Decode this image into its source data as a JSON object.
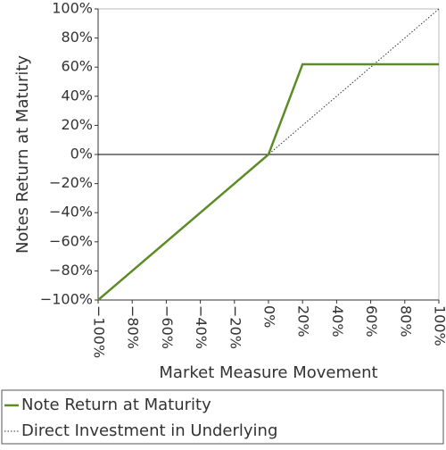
{
  "chart_data": {
    "type": "line",
    "x_label": "Market Measure Movement",
    "y_label": "Notes Return at Maturity",
    "x": [
      -100,
      0,
      20,
      100
    ],
    "series": [
      {
        "name": "Note Return at Maturity",
        "color": "#5b8c28",
        "style": "solid",
        "values": [
          -100,
          0,
          62,
          62
        ]
      },
      {
        "name": "Direct Investment in Underlying",
        "color": "#333333",
        "style": "dotted",
        "values": [
          -100,
          0,
          20,
          100
        ]
      }
    ],
    "xlim": [
      -100,
      100
    ],
    "ylim": [
      -100,
      100
    ],
    "xticks": [
      {
        "value": -100,
        "label": "−100%"
      },
      {
        "value": -80,
        "label": "−80%"
      },
      {
        "value": -60,
        "label": "−60%"
      },
      {
        "value": -40,
        "label": "−40%"
      },
      {
        "value": -20,
        "label": "−20%"
      },
      {
        "value": 0,
        "label": "0%"
      },
      {
        "value": 20,
        "label": "20%"
      },
      {
        "value": 40,
        "label": "40%"
      },
      {
        "value": 60,
        "label": "60%"
      },
      {
        "value": 80,
        "label": "80%"
      },
      {
        "value": 100,
        "label": "100%"
      }
    ],
    "yticks": [
      {
        "value": -100,
        "label": "−100%"
      },
      {
        "value": -80,
        "label": "−80%"
      },
      {
        "value": -60,
        "label": "−60%"
      },
      {
        "value": -40,
        "label": "−40%"
      },
      {
        "value": -20,
        "label": "−20%"
      },
      {
        "value": 0,
        "label": "0%"
      },
      {
        "value": 20,
        "label": "20%"
      },
      {
        "value": 40,
        "label": "40%"
      },
      {
        "value": 60,
        "label": "60%"
      },
      {
        "value": 80,
        "label": "80%"
      },
      {
        "value": 100,
        "label": "100%"
      }
    ],
    "grid": false,
    "legend": "bottom"
  }
}
